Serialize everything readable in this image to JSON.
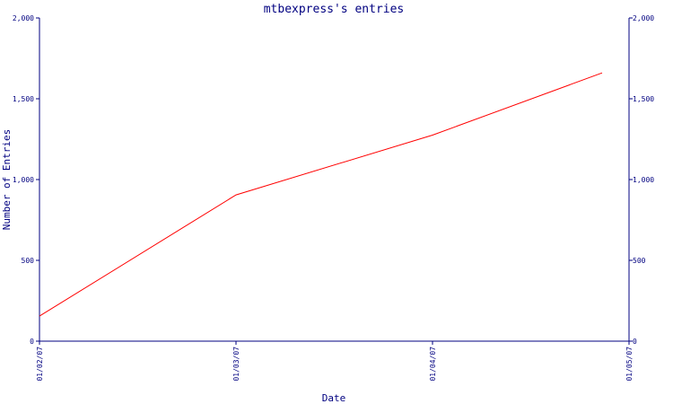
{
  "chart_data": {
    "type": "line",
    "title": "mtbexpress's entries",
    "xlabel": "Date",
    "ylabel": "Number of Entries",
    "ylim": [
      0,
      2000
    ],
    "xlim": [
      "2007-01-02",
      "2007-01-05"
    ],
    "grid": false,
    "y_ticks": [
      0,
      500,
      1000,
      1500,
      2000
    ],
    "y_tick_labels": [
      "0",
      "500",
      "1,000",
      "1,500",
      "2,000"
    ],
    "x_ticks": [
      "2007-01-02",
      "2007-01-03",
      "2007-01-04",
      "2007-01-05"
    ],
    "x_tick_labels": [
      "01/02/07",
      "01/03/07",
      "01/04/07",
      "01/05/07"
    ],
    "series": [
      {
        "x": [
          "2007-01-02",
          "2007-01-03",
          "2007-01-04",
          "2007-01-05"
        ],
        "values": [
          155,
          905,
          1275,
          1660
        ],
        "color": "#ff0000"
      }
    ],
    "axis_color": "#000080"
  }
}
